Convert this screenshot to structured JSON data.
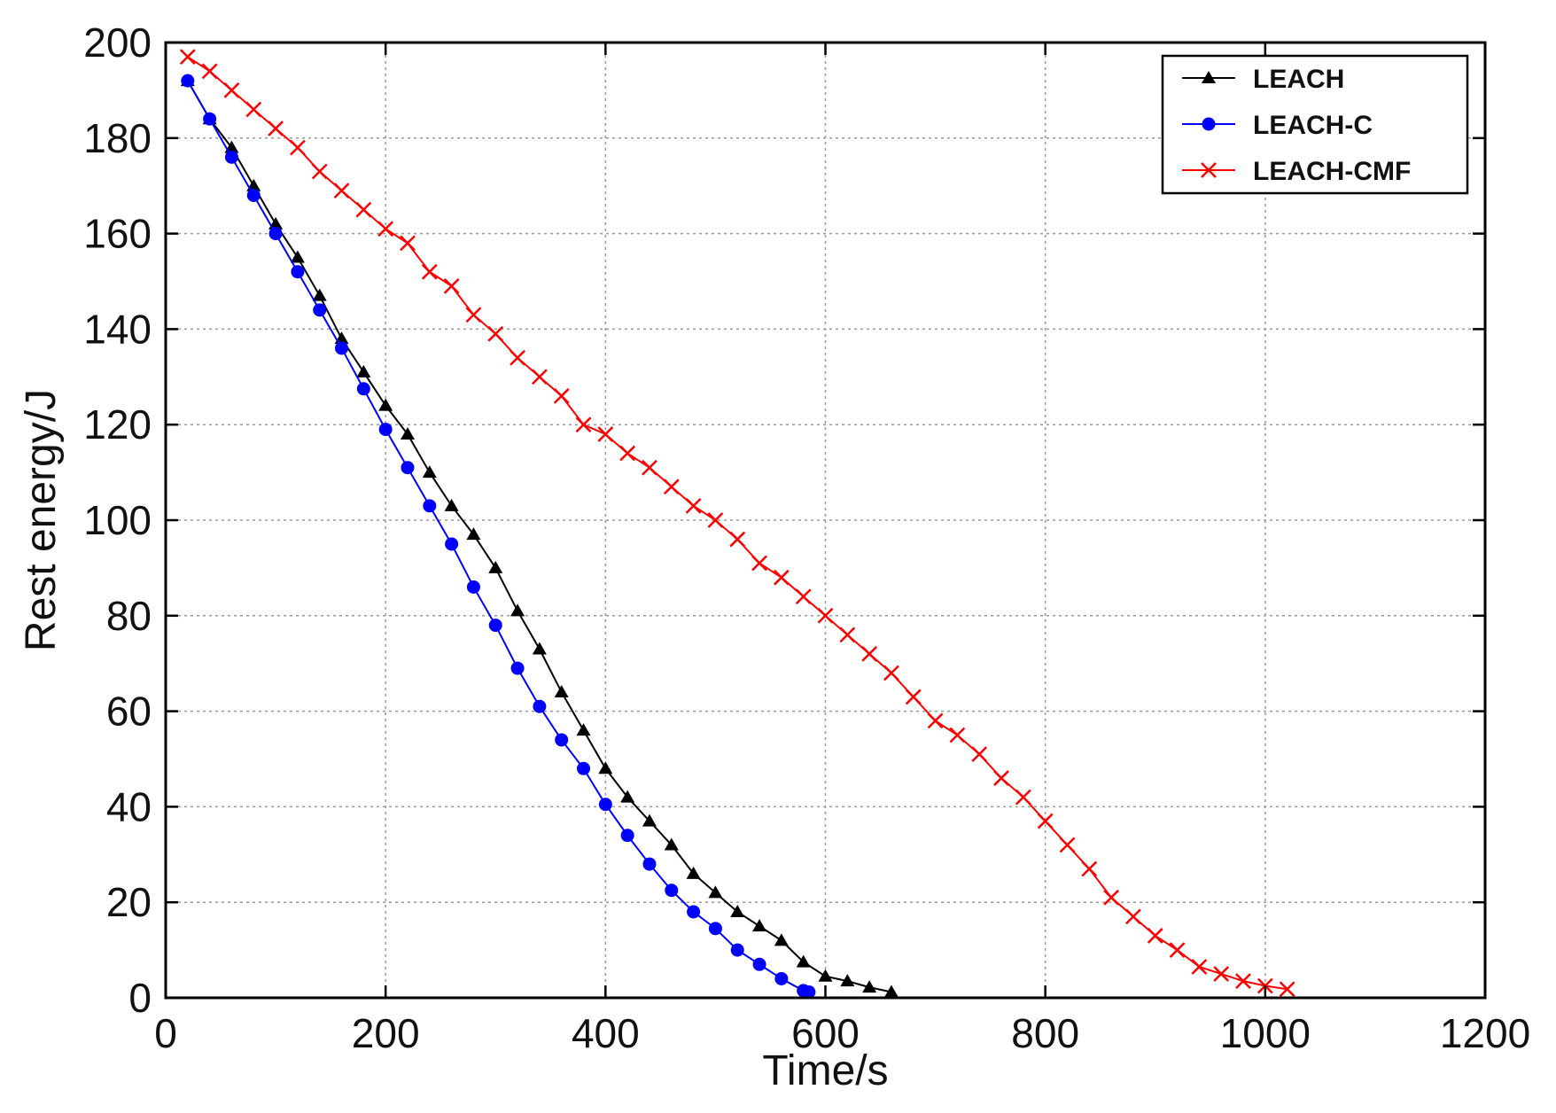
{
  "chart_data": {
    "type": "line",
    "title": "",
    "xlabel": "Time/s",
    "ylabel": "Rest energy/J",
    "xlim": [
      0,
      1200
    ],
    "ylim": [
      0,
      200
    ],
    "xticks": [
      0,
      200,
      400,
      600,
      800,
      1000,
      1200
    ],
    "yticks": [
      0,
      20,
      40,
      60,
      80,
      100,
      120,
      140,
      160,
      180,
      200
    ],
    "grid": true,
    "legend_position": "top-right",
    "series": [
      {
        "name": "LEACH",
        "color": "#000000",
        "marker": "triangle",
        "x": [
          20,
          40,
          60,
          80,
          100,
          120,
          140,
          160,
          180,
          200,
          220,
          240,
          260,
          280,
          300,
          320,
          340,
          360,
          380,
          400,
          420,
          440,
          460,
          480,
          500,
          520,
          540,
          560,
          580,
          600,
          620,
          640,
          660
        ],
        "y": [
          192,
          184,
          178,
          170,
          162,
          155,
          147,
          138,
          131,
          124,
          118,
          110,
          103,
          97,
          90,
          81,
          73,
          64,
          56,
          48,
          42,
          37,
          32,
          26,
          22,
          18,
          15,
          12,
          7.5,
          4.5,
          3.5,
          2.2,
          1.2
        ]
      },
      {
        "name": "LEACH-C",
        "color": "#0000ff",
        "marker": "circle",
        "x": [
          20,
          40,
          60,
          80,
          100,
          120,
          140,
          160,
          180,
          200,
          220,
          240,
          260,
          280,
          300,
          320,
          340,
          360,
          380,
          400,
          420,
          440,
          460,
          480,
          500,
          520,
          540,
          560,
          580,
          585
        ],
        "y": [
          192,
          184,
          176,
          168,
          160,
          152,
          144,
          136,
          127.5,
          119,
          111,
          103,
          95,
          86,
          78,
          69,
          61,
          54,
          48,
          40.5,
          34,
          28,
          22.5,
          18,
          14.5,
          10,
          7,
          4,
          1.5,
          1.2
        ]
      },
      {
        "name": "LEACH-CMF",
        "color": "#ff0000",
        "marker": "x",
        "x": [
          20,
          40,
          60,
          80,
          100,
          120,
          140,
          160,
          180,
          200,
          220,
          240,
          260,
          280,
          300,
          320,
          340,
          360,
          380,
          400,
          420,
          440,
          460,
          480,
          500,
          520,
          540,
          560,
          580,
          600,
          620,
          640,
          660,
          680,
          700,
          720,
          740,
          760,
          780,
          800,
          820,
          840,
          860,
          880,
          900,
          920,
          940,
          960,
          980,
          1000,
          1020
        ],
        "y": [
          197,
          194,
          190,
          186,
          182,
          178,
          173,
          169,
          165,
          161,
          158,
          152,
          149,
          143,
          139,
          134,
          130,
          126,
          120,
          118,
          114,
          111,
          107,
          103,
          100,
          96,
          91,
          88,
          84,
          80,
          76,
          72,
          68,
          63,
          58,
          55,
          51,
          46,
          42,
          37,
          32,
          27,
          21,
          17,
          13,
          10,
          6.5,
          5,
          3.5,
          2.5,
          1.8
        ]
      }
    ]
  }
}
